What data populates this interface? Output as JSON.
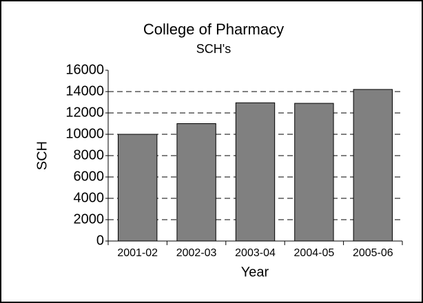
{
  "chart_data": {
    "type": "bar",
    "title": "College of Pharmacy",
    "subtitle": "SCH's",
    "x_label": "Year",
    "y_label": "SCH",
    "categories": [
      "2001-02",
      "2002-03",
      "2003-04",
      "2004-05",
      "2005-06"
    ],
    "values": [
      10000,
      11000,
      12950,
      12900,
      14200
    ],
    "color": "#808080",
    "ylim": [
      0,
      16000
    ],
    "yticks": [
      0,
      2000,
      4000,
      6000,
      8000,
      10000,
      12000,
      14000,
      16000
    ],
    "grid": true
  }
}
